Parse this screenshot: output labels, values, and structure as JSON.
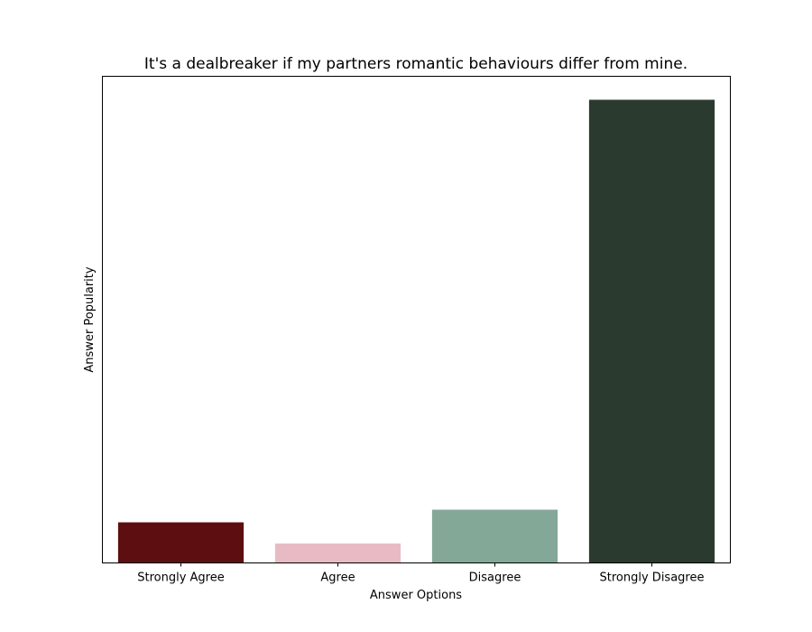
{
  "chart_data": {
    "type": "bar",
    "title": "It's a dealbreaker if my partners romantic behaviours differ from mine.",
    "xlabel": "Answer Options",
    "ylabel": "Answer Popularity",
    "categories": [
      "Strongly Agree",
      "Agree",
      "Disagree",
      "Strongly Disagree"
    ],
    "values": [
      0.0815,
      0.0389,
      0.1069,
      0.9299
    ],
    "colors": [
      "#5c0e10",
      "#e8bbc4",
      "#84a898",
      "#2b3a2f"
    ],
    "ylim": [
      0,
      0.977
    ],
    "y_ticks_shown": false,
    "grid": false
  }
}
